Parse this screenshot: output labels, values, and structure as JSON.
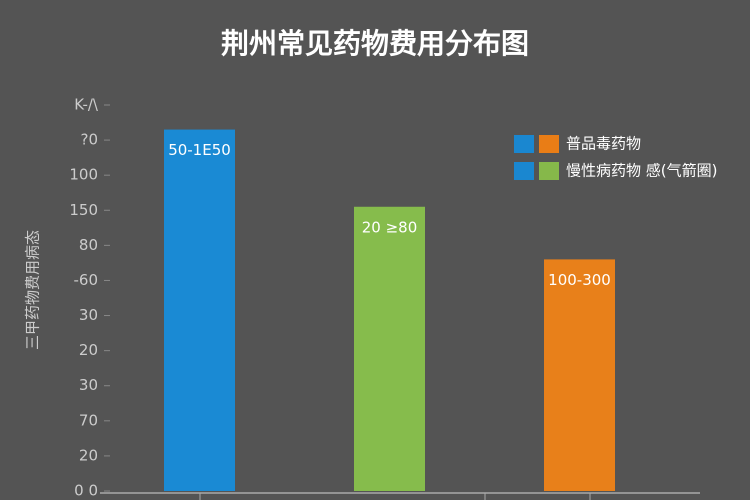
{
  "chart_data": {
    "type": "bar",
    "title": "荆州常见药物费用分布图",
    "y_label": "三甲药物费用病态",
    "values": [
      10.3,
      8.1,
      6.6
    ],
    "colors": [
      "#1a8ad4",
      "#86bc4c",
      "#e8801a"
    ],
    "annotations": [
      "50-1E50",
      "20 ≥80",
      "100-300"
    ],
    "ylim": [
      0,
      11
    ],
    "yticks": [
      {
        "value": 0,
        "label": "0 0"
      },
      {
        "value": 1,
        "label": "20"
      },
      {
        "value": 2,
        "label": "70"
      },
      {
        "value": 3,
        "label": "30"
      },
      {
        "value": 4,
        "label": "20"
      },
      {
        "value": 5,
        "label": "30"
      },
      {
        "value": 6,
        "label": "-60"
      },
      {
        "value": 7,
        "label": "80"
      },
      {
        "value": 8,
        "label": "150"
      },
      {
        "value": 9,
        "label": "100"
      },
      {
        "value": 10,
        "label": "?0"
      },
      {
        "value": 11,
        "label": "K-/\\"
      }
    ],
    "legend": [
      {
        "name": "普品毒药物",
        "colors": [
          "#1a87d0",
          "#e97d16"
        ]
      },
      {
        "name": "慢性病药物 感(气箭圈)",
        "colors": [
          "#1a87d0",
          "#86b84a"
        ]
      }
    ]
  }
}
